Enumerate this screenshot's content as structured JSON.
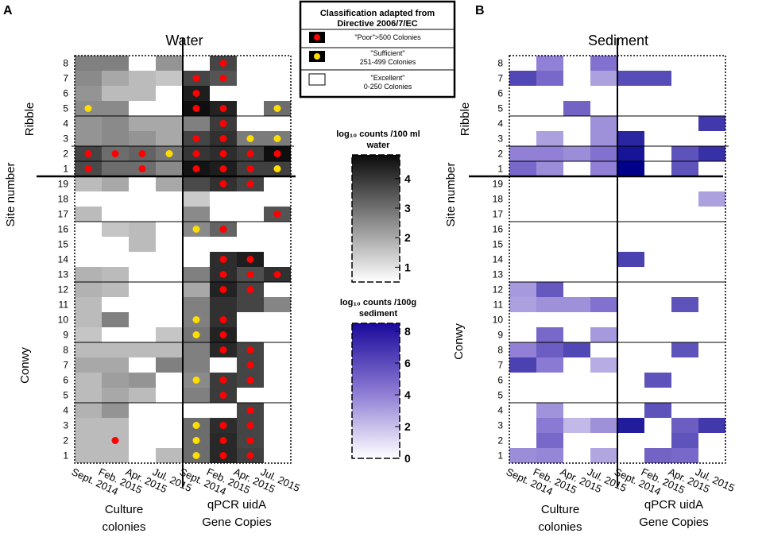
{
  "chart_data": {
    "type": "heatmap",
    "panels": [
      {
        "label": "A",
        "title": "Water",
        "colormap": "gray",
        "color_max": "#0a0a0a",
        "colorbar_title_line1": "log₁₀ counts /100 ml",
        "colorbar_title_line2": "water",
        "colorbar_ticks": [
          "1",
          "2",
          "3",
          "4"
        ],
        "colorbar_range": [
          0.5,
          4.8
        ],
        "ylabel": "Site number",
        "groups": [
          "Ribble",
          "Conwy"
        ],
        "group_rows": {
          "Ribble": [
            "8",
            "7",
            "6",
            "5",
            "4",
            "3",
            "2",
            "1"
          ],
          "Conwy": [
            "19",
            "18",
            "17",
            "16",
            "15",
            "14",
            "13",
            "12",
            "11",
            "10",
            "9",
            "8",
            "7",
            "6",
            "5",
            "4",
            "3",
            "2",
            "1"
          ]
        },
        "columns": [
          "Sept. 2014",
          "Feb. 2015",
          "Apr. 2015",
          "Jul. 2015",
          "Sept. 2014",
          "Feb. 2015",
          "Apr. 2015",
          "Jul. 2015"
        ],
        "xgroup_left_line1": "Culture",
        "xgroup_left_line2": "colonies",
        "xgroup_right_line1": "qPCR uidA",
        "xgroup_right_line2": "Gene Copies",
        "values": [
          [
            2.4,
            2.4,
            null,
            2.0,
            null,
            3.6,
            null,
            null
          ],
          [
            2.2,
            1.6,
            1.2,
            1.0,
            3.6,
            3.3,
            null,
            null
          ],
          [
            2.0,
            1.2,
            1.2,
            null,
            4.4,
            null,
            null,
            null
          ],
          [
            2.2,
            2.2,
            null,
            null,
            4.7,
            4.3,
            null,
            2.8
          ],
          [
            2.0,
            2.2,
            1.6,
            1.6,
            2.4,
            3.8,
            null,
            null
          ],
          [
            2.0,
            2.2,
            2.0,
            1.6,
            3.6,
            4.0,
            2.5,
            2.5
          ],
          [
            3.6,
            2.8,
            3.0,
            2.6,
            3.9,
            4.1,
            3.7,
            4.7
          ],
          [
            3.5,
            2.8,
            2.8,
            2.2,
            4.6,
            4.4,
            3.7,
            3.7
          ],
          [
            1.2,
            1.6,
            null,
            1.6,
            3.5,
            4.0,
            3.6,
            null
          ],
          [
            null,
            null,
            null,
            null,
            0.9,
            null,
            null,
            null
          ],
          [
            1.2,
            null,
            null,
            null,
            2.2,
            null,
            null,
            3.3
          ],
          [
            null,
            1.0,
            1.2,
            null,
            2.2,
            3.0,
            null,
            null
          ],
          [
            null,
            null,
            1.2,
            null,
            null,
            null,
            null,
            null
          ],
          [
            null,
            null,
            null,
            null,
            null,
            4.1,
            4.4,
            null
          ],
          [
            1.4,
            1.2,
            null,
            null,
            2.4,
            4.1,
            3.4,
            4.0
          ],
          [
            1.4,
            1.2,
            null,
            null,
            1.6,
            4.3,
            3.6,
            null
          ],
          [
            1.2,
            null,
            null,
            null,
            2.4,
            4.0,
            3.6,
            2.3
          ],
          [
            1.2,
            2.4,
            null,
            null,
            2.4,
            4.0,
            null,
            null
          ],
          [
            1.0,
            null,
            null,
            1.0,
            2.6,
            4.3,
            null,
            null
          ],
          [
            1.2,
            1.2,
            1.2,
            1.2,
            2.4,
            4.2,
            3.6,
            null
          ],
          [
            1.6,
            1.6,
            null,
            2.4,
            2.4,
            null,
            3.6,
            null
          ],
          [
            1.2,
            1.8,
            2.0,
            null,
            2.2,
            3.8,
            3.6,
            null
          ],
          [
            1.2,
            1.6,
            1.2,
            null,
            2.4,
            3.8,
            null,
            null
          ],
          [
            1.4,
            2.0,
            null,
            null,
            null,
            null,
            3.6,
            null
          ],
          [
            1.2,
            1.2,
            null,
            null,
            2.8,
            4.1,
            3.6,
            null
          ],
          [
            1.2,
            1.2,
            null,
            null,
            2.8,
            4.2,
            3.6,
            null
          ],
          [
            1.2,
            1.2,
            null,
            1.2,
            2.8,
            4.2,
            3.7,
            null
          ]
        ],
        "markers": [
          [
            null,
            null,
            null,
            null,
            null,
            "poor",
            null,
            null
          ],
          [
            null,
            null,
            null,
            null,
            "poor",
            "poor",
            null,
            null
          ],
          [
            null,
            null,
            null,
            null,
            "poor",
            null,
            null,
            null
          ],
          [
            "sufficient",
            null,
            null,
            null,
            "poor",
            "poor",
            null,
            "sufficient"
          ],
          [
            null,
            null,
            null,
            null,
            null,
            "poor",
            null,
            null
          ],
          [
            null,
            null,
            null,
            null,
            "poor",
            "poor",
            "sufficient",
            "sufficient"
          ],
          [
            "poor",
            "poor",
            "poor",
            "sufficient",
            "poor",
            "poor",
            "poor",
            "poor"
          ],
          [
            "poor",
            null,
            "poor",
            null,
            "poor",
            "poor",
            "poor",
            "sufficient"
          ],
          [
            null,
            null,
            null,
            null,
            null,
            "poor",
            "poor",
            null
          ],
          [
            null,
            null,
            null,
            null,
            null,
            null,
            null,
            null
          ],
          [
            null,
            null,
            null,
            null,
            null,
            null,
            null,
            "poor"
          ],
          [
            null,
            null,
            null,
            null,
            "sufficient",
            "poor",
            null,
            null
          ],
          [
            null,
            null,
            null,
            null,
            null,
            null,
            null,
            null
          ],
          [
            null,
            null,
            null,
            null,
            null,
            "poor",
            "poor",
            null
          ],
          [
            null,
            null,
            null,
            null,
            null,
            "poor",
            "poor",
            "poor"
          ],
          [
            null,
            null,
            null,
            null,
            null,
            "poor",
            "poor",
            null
          ],
          [
            null,
            null,
            null,
            null,
            null,
            null,
            null,
            null
          ],
          [
            null,
            null,
            null,
            null,
            "sufficient",
            "poor",
            null,
            null
          ],
          [
            null,
            null,
            null,
            null,
            "sufficient",
            "poor",
            null,
            null
          ],
          [
            null,
            null,
            null,
            null,
            null,
            "poor",
            "poor",
            null
          ],
          [
            null,
            null,
            null,
            null,
            null,
            null,
            "poor",
            null
          ],
          [
            null,
            null,
            null,
            null,
            "sufficient",
            "poor",
            "poor",
            null
          ],
          [
            null,
            null,
            null,
            null,
            null,
            "poor",
            null,
            null
          ],
          [
            null,
            null,
            null,
            null,
            null,
            null,
            "poor",
            null
          ],
          [
            null,
            null,
            null,
            null,
            "sufficient",
            "poor",
            "poor",
            null
          ],
          [
            null,
            "poor",
            null,
            null,
            "sufficient",
            "poor",
            "poor",
            null
          ],
          [
            null,
            null,
            null,
            null,
            "sufficient",
            "poor",
            "poor",
            null
          ]
        ]
      },
      {
        "label": "B",
        "title": "Sediment",
        "colormap": "purple",
        "color_max": "#00008b",
        "colorbar_title_line1": "log₁₀ counts /100g",
        "colorbar_title_line2": "sediment",
        "colorbar_ticks": [
          "0",
          "2",
          "4",
          "6",
          "8"
        ],
        "colorbar_range": [
          0,
          8.5
        ],
        "ylabel": "Site number",
        "groups": [
          "Ribble",
          "Conwy"
        ],
        "columns": [
          "Sept. 2014",
          "Feb. 2015",
          "Apr. 2015",
          "Jul. 2015",
          "Sept. 2014",
          "Feb. 2015",
          "Apr. 2015",
          "Jul. 2015"
        ],
        "xgroup_left_line1": "Culture",
        "xgroup_left_line2": "colonies",
        "xgroup_right_line1": "qPCR uidA",
        "xgroup_right_line2": "Gene Copies",
        "values": [
          [
            null,
            4.0,
            null,
            4.5,
            null,
            null,
            null,
            null
          ],
          [
            6.0,
            4.8,
            null,
            3.0,
            5.8,
            5.8,
            null,
            null
          ],
          [
            null,
            null,
            null,
            null,
            null,
            null,
            null,
            null
          ],
          [
            null,
            null,
            5.0,
            null,
            null,
            null,
            null,
            null
          ],
          [
            null,
            null,
            null,
            3.5,
            null,
            null,
            null,
            6.5
          ],
          [
            null,
            3.0,
            null,
            3.5,
            7.2,
            null,
            null,
            null
          ],
          [
            4.0,
            4.0,
            3.6,
            4.5,
            7.8,
            null,
            5.6,
            6.8
          ],
          [
            4.8,
            3.6,
            null,
            4.0,
            8.5,
            null,
            5.6,
            null
          ],
          [
            null,
            null,
            null,
            null,
            null,
            null,
            null,
            null
          ],
          [
            null,
            null,
            null,
            null,
            null,
            null,
            null,
            3.0
          ],
          [
            null,
            null,
            null,
            null,
            null,
            null,
            null,
            null
          ],
          [
            null,
            null,
            null,
            null,
            null,
            null,
            null,
            null
          ],
          [
            null,
            null,
            null,
            null,
            null,
            null,
            null,
            null
          ],
          [
            null,
            null,
            null,
            null,
            6.2,
            null,
            null,
            null
          ],
          [
            null,
            null,
            null,
            null,
            null,
            null,
            null,
            null
          ],
          [
            3.2,
            5.4,
            null,
            null,
            null,
            null,
            null,
            null
          ],
          [
            3.0,
            3.5,
            3.5,
            4.5,
            null,
            null,
            5.6,
            null
          ],
          [
            null,
            null,
            null,
            null,
            null,
            null,
            null,
            null
          ],
          [
            null,
            4.8,
            null,
            3.2,
            null,
            null,
            null,
            null
          ],
          [
            4.0,
            5.2,
            6.0,
            null,
            null,
            null,
            5.6,
            null
          ],
          [
            6.2,
            4.2,
            null,
            2.6,
            null,
            null,
            null,
            null
          ],
          [
            null,
            null,
            null,
            null,
            null,
            5.6,
            null,
            null
          ],
          [
            null,
            null,
            null,
            null,
            null,
            null,
            null,
            null
          ],
          [
            null,
            3.4,
            null,
            null,
            null,
            5.6,
            null,
            null
          ],
          [
            null,
            4.2,
            2.2,
            3.5,
            7.5,
            null,
            5.2,
            6.5
          ],
          [
            null,
            4.8,
            null,
            null,
            null,
            null,
            5.6,
            null
          ],
          [
            3.6,
            3.8,
            null,
            2.8,
            null,
            5.0,
            4.8,
            null
          ]
        ]
      }
    ]
  },
  "legend": {
    "title_line1": "Classification adapted from",
    "title_line2": "Directive 2006/7/EC",
    "items": [
      {
        "label_line1": "\"Poor\">500 Colonies",
        "label_line2": "",
        "fill": "#000000",
        "dot": "#ff0000"
      },
      {
        "label_line1": "\"Sufficient\"",
        "label_line2": "251-499 Colonies",
        "fill": "#000000",
        "dot": "#ffdd00"
      },
      {
        "label_line1": "\"Excellent\"",
        "label_line2": "0-250 Colonies",
        "fill": "#ffffff",
        "dot": null
      }
    ]
  }
}
